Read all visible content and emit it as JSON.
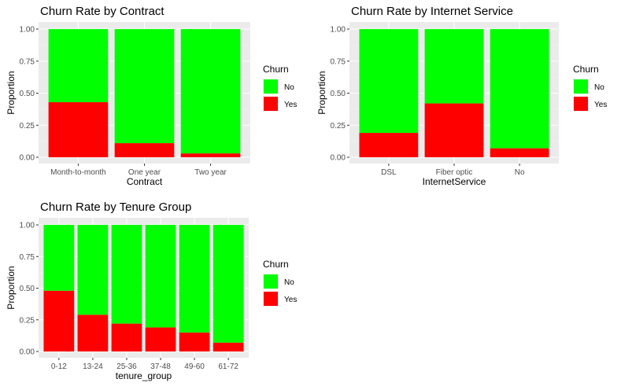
{
  "legend": {
    "title": "Churn",
    "items": [
      {
        "label": "No",
        "color": "#00ff00"
      },
      {
        "label": "Yes",
        "color": "#ff0000"
      }
    ]
  },
  "chart_data": [
    {
      "type": "bar",
      "stacked": true,
      "title": "Churn Rate by Contract",
      "xlabel": "Contract",
      "ylabel": "Proportion",
      "ylim": [
        0,
        1
      ],
      "yticks": [
        "0.00",
        "0.25",
        "0.50",
        "0.75",
        "1.00"
      ],
      "grid": true,
      "legend_position": "right",
      "categories": [
        "Month-to-month",
        "One year",
        "Two year"
      ],
      "series": [
        {
          "name": "Yes",
          "color": "#ff0000",
          "values": [
            0.43,
            0.11,
            0.03
          ]
        },
        {
          "name": "No",
          "color": "#00ff00",
          "values": [
            0.57,
            0.89,
            0.97
          ]
        }
      ]
    },
    {
      "type": "bar",
      "stacked": true,
      "title": "Churn Rate by Internet Service",
      "xlabel": "InternetService",
      "ylabel": "Proportion",
      "ylim": [
        0,
        1
      ],
      "yticks": [
        "0.00",
        "0.25",
        "0.50",
        "0.75",
        "1.00"
      ],
      "grid": true,
      "legend_position": "right",
      "categories": [
        "DSL",
        "Fiber optic",
        "No"
      ],
      "series": [
        {
          "name": "Yes",
          "color": "#ff0000",
          "values": [
            0.19,
            0.42,
            0.07
          ]
        },
        {
          "name": "No",
          "color": "#00ff00",
          "values": [
            0.81,
            0.58,
            0.93
          ]
        }
      ]
    },
    {
      "type": "bar",
      "stacked": true,
      "title": "Churn Rate by Tenure Group",
      "xlabel": "tenure_group",
      "ylabel": "Proportion",
      "ylim": [
        0,
        1
      ],
      "yticks": [
        "0.00",
        "0.25",
        "0.50",
        "0.75",
        "1.00"
      ],
      "grid": true,
      "legend_position": "right",
      "categories": [
        "0-12",
        "13-24",
        "25-36",
        "37-48",
        "49-60",
        "61-72"
      ],
      "series": [
        {
          "name": "Yes",
          "color": "#ff0000",
          "values": [
            0.48,
            0.29,
            0.22,
            0.19,
            0.15,
            0.07
          ]
        },
        {
          "name": "No",
          "color": "#00ff00",
          "values": [
            0.52,
            0.71,
            0.78,
            0.81,
            0.85,
            0.93
          ]
        }
      ]
    }
  ]
}
